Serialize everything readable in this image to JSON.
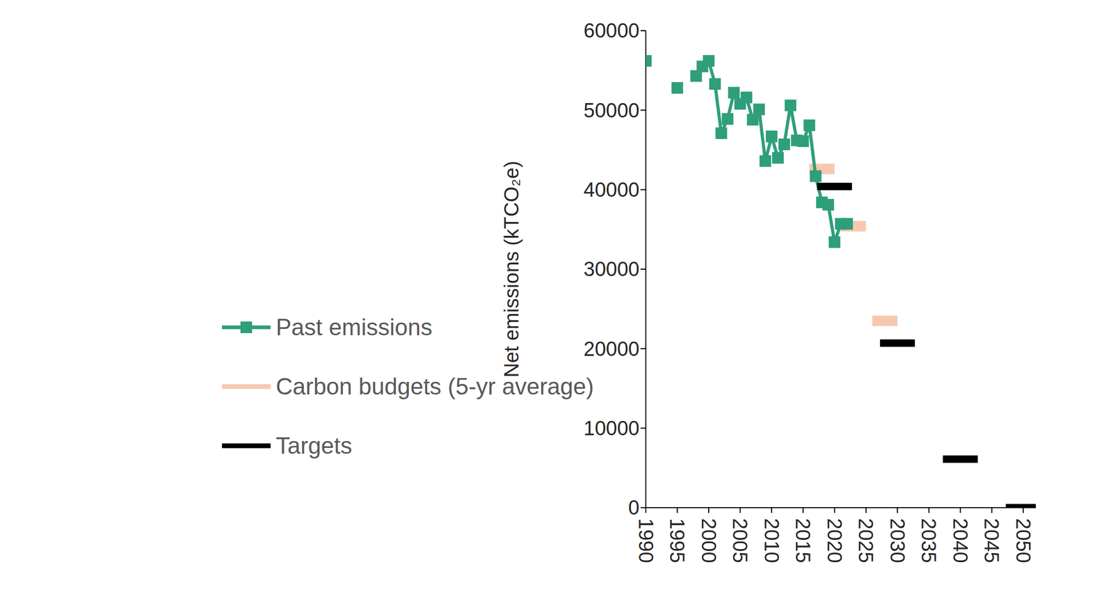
{
  "chart_data": {
    "type": "line",
    "y_label": "Net emissions (kTCO₂e)",
    "xlim": [
      1990,
      2052
    ],
    "xticks": [
      1990,
      1995,
      2000,
      2005,
      2010,
      2015,
      2020,
      2025,
      2030,
      2035,
      2040,
      2045,
      2050
    ],
    "ylim": [
      0,
      60000
    ],
    "yticks": [
      0,
      10000,
      20000,
      30000,
      40000,
      50000,
      60000
    ],
    "legend": "left",
    "series": [
      {
        "name": "Past emissions",
        "type": "line",
        "color": "#2e9e7b",
        "marker": "square",
        "x": [
          1990,
          1991,
          1992,
          1993,
          1994,
          1995,
          1996,
          1997,
          1998,
          1999,
          2000,
          2001,
          2002,
          2003,
          2004,
          2005,
          2006,
          2007,
          2008,
          2009,
          2010,
          2011,
          2012,
          2013,
          2014,
          2015,
          2016,
          2017,
          2018,
          2019,
          2020,
          2021,
          2022
        ],
        "values": [
          56200,
          null,
          null,
          null,
          null,
          52800,
          null,
          null,
          54300,
          55500,
          56200,
          53300,
          47100,
          48900,
          52200,
          50800,
          51600,
          48800,
          50100,
          43600,
          46700,
          44000,
          45700,
          50600,
          46200,
          46100,
          48100,
          41700,
          38400,
          38100,
          33400,
          35700,
          35700
        ]
      },
      {
        "name": "Carbon budgets (5-yr average)",
        "type": "segment",
        "color": "#f6c9af",
        "periods": [
          [
            2016,
            2020
          ],
          [
            2021,
            2025
          ],
          [
            2026,
            2030
          ]
        ],
        "values": [
          42600,
          35400,
          23500
        ]
      },
      {
        "name": "Targets",
        "type": "scatter",
        "color": "#000000",
        "marker": "dash",
        "x": [
          2020,
          2030,
          2040,
          2050
        ],
        "values": [
          40400,
          20700,
          6100,
          0
        ]
      }
    ]
  }
}
